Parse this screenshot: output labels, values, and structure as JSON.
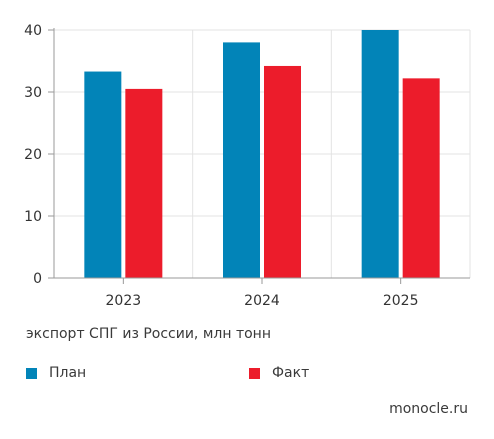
{
  "chart_data": {
    "type": "bar",
    "categories": [
      "2023",
      "2024",
      "2025"
    ],
    "series": [
      {
        "name": "План",
        "color": "#0284b8",
        "values": [
          33.3,
          38,
          40
        ]
      },
      {
        "name": "Факт",
        "color": "#ec1c2b",
        "values": [
          30.5,
          34.2,
          32.2
        ]
      }
    ],
    "ylim": [
      0,
      40
    ],
    "yticks": [
      0,
      10,
      20,
      30,
      40
    ],
    "grid": true,
    "caption": "экспорт СПГ из России, млн тонн",
    "legend_position": "bottom"
  },
  "source": "monocle.ru"
}
